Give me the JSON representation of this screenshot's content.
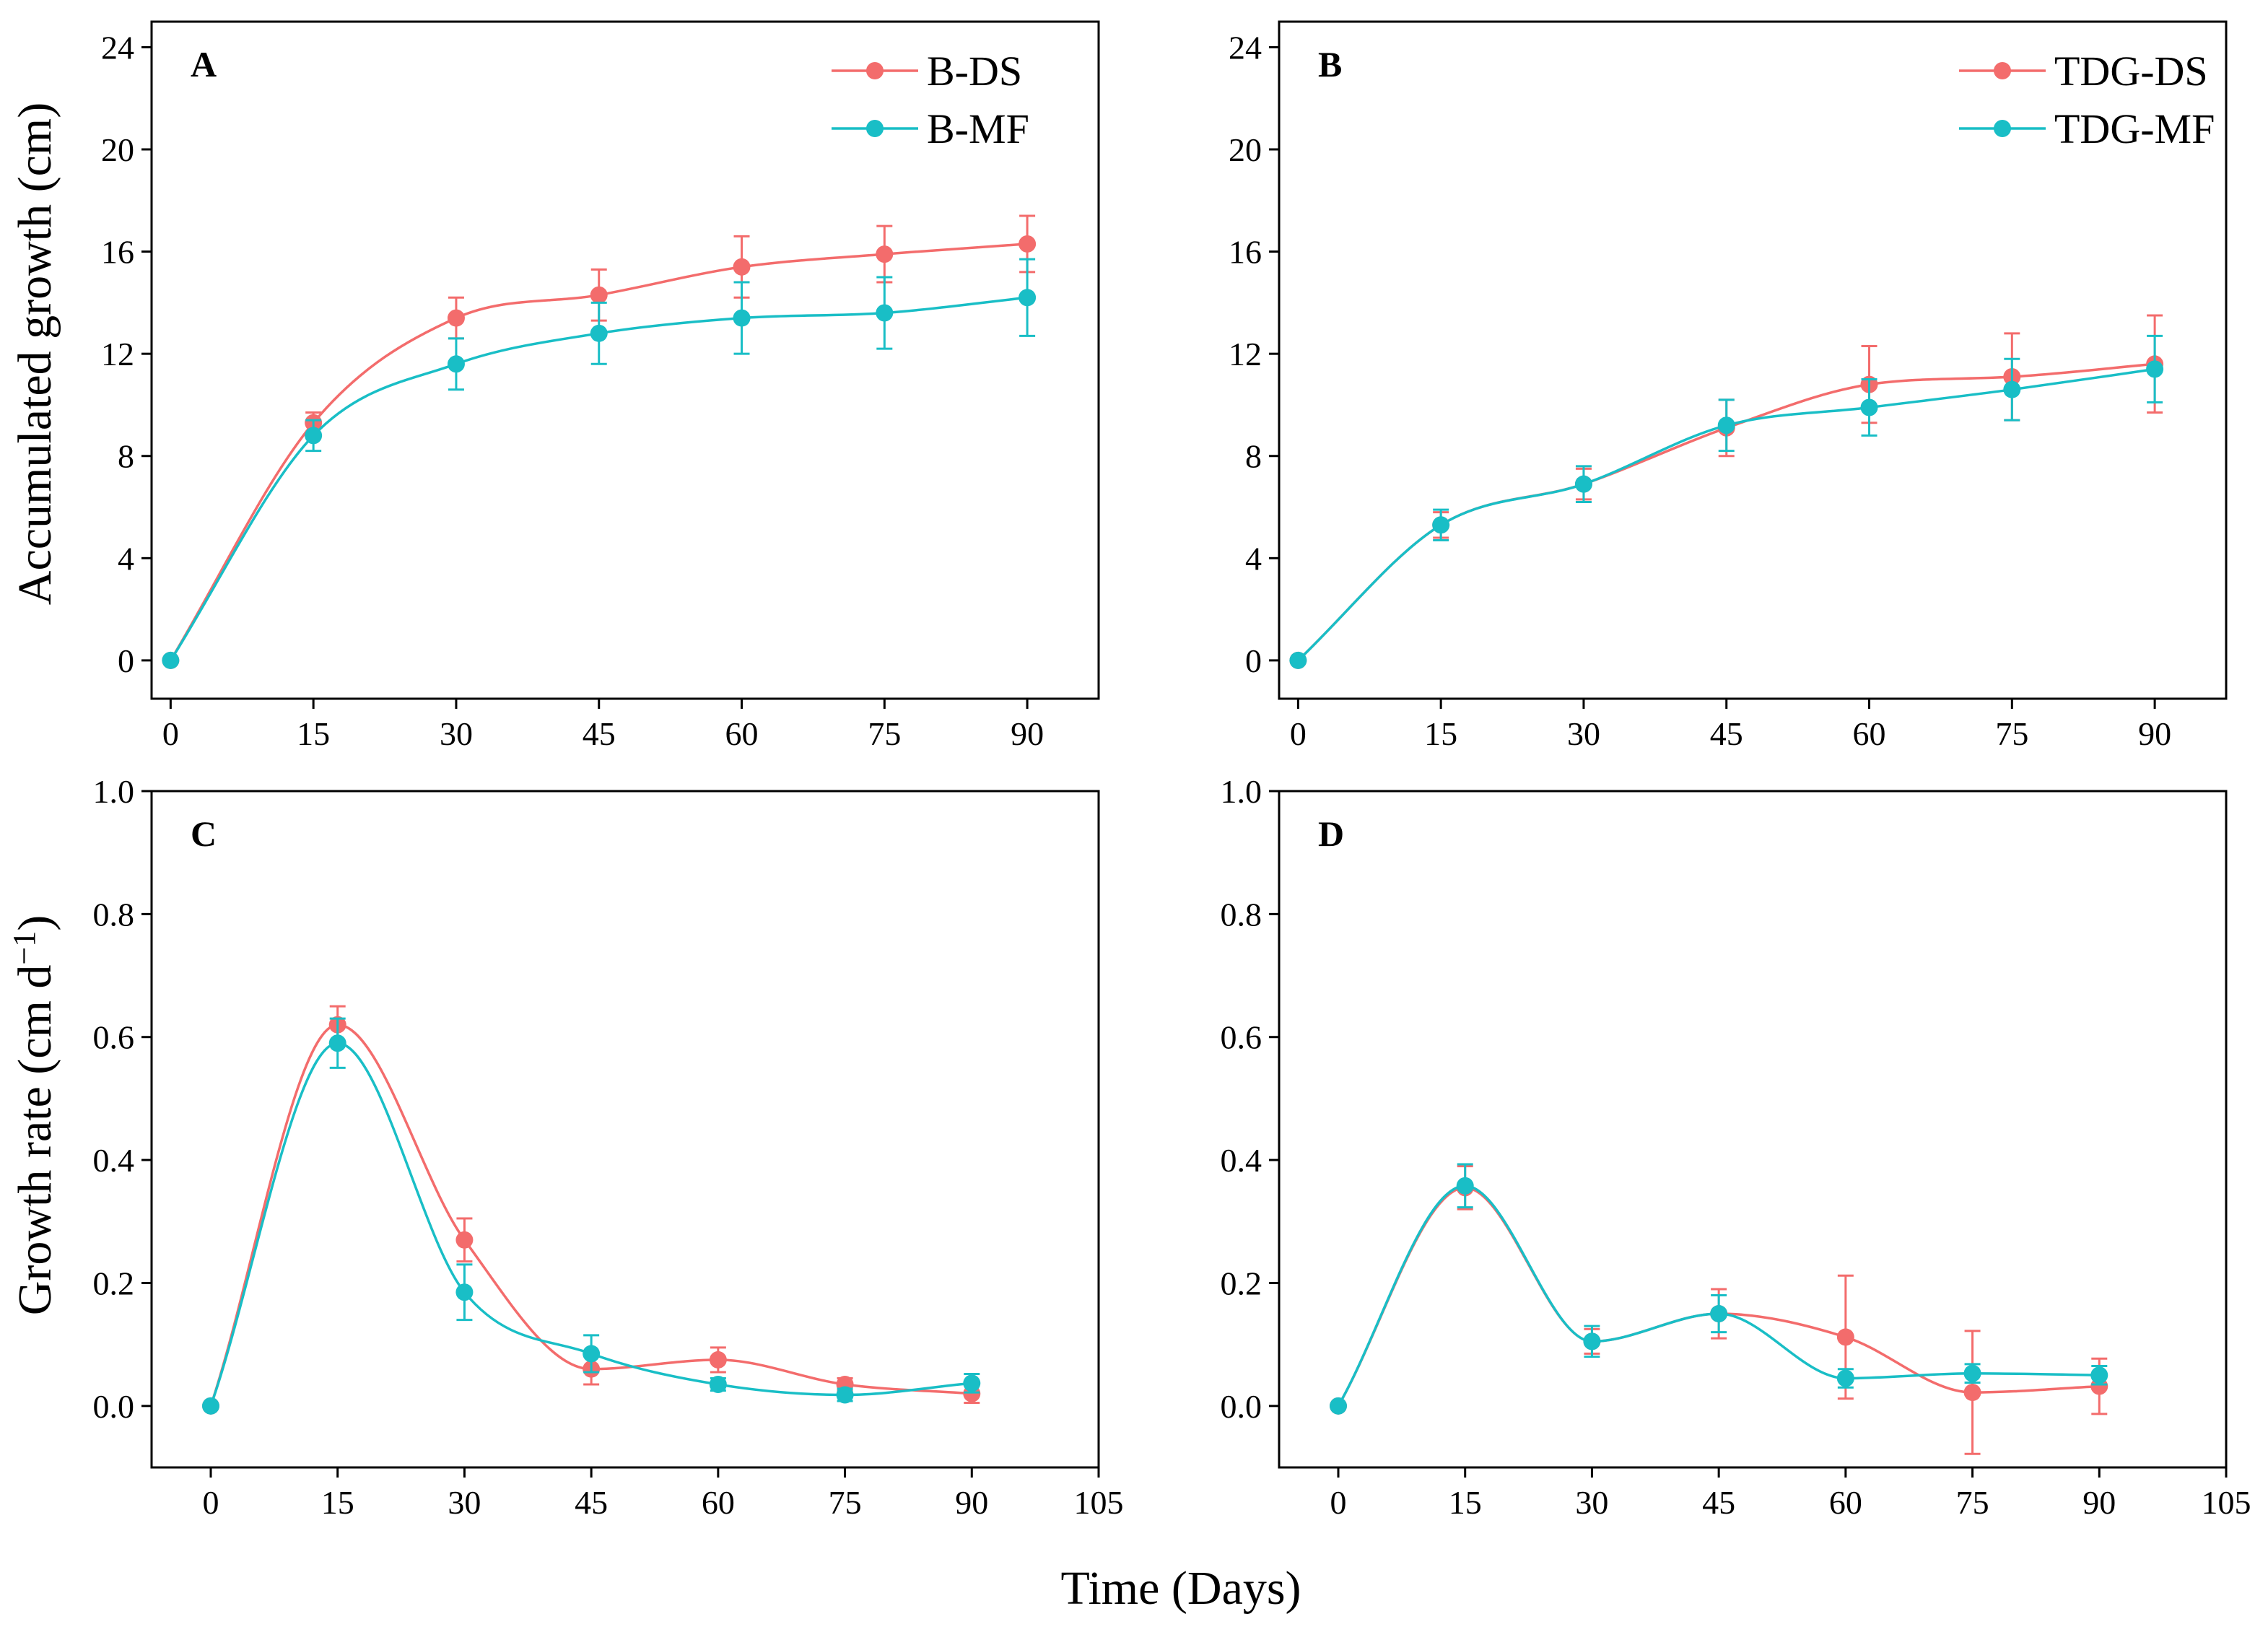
{
  "figure": {
    "x_axis_title": "Time (Days)",
    "y_title_top": "Accumulated growth (cm)",
    "y_title_bottom_main": "Growth rate (cm d",
    "y_title_bottom_sup": "−1",
    "y_title_bottom_close": ")"
  },
  "colors": {
    "ds": "#f36c6c",
    "mf": "#19bec6"
  },
  "chart_data": [
    {
      "type": "line",
      "panel": "A",
      "ylabel": "Accumulated growth (cm)",
      "xlim": [
        -2,
        97.5
      ],
      "ylim": [
        -1.5,
        25
      ],
      "xticks": [
        0,
        15,
        30,
        45,
        60,
        75,
        90
      ],
      "xtick_labels": [
        "0",
        "15",
        "30",
        "45",
        "60",
        "75",
        "90"
      ],
      "yticks": [
        0,
        4,
        8,
        12,
        16,
        20,
        24
      ],
      "ytick_labels": [
        "0",
        "4",
        "8",
        "12",
        "16",
        "20",
        "24"
      ],
      "legend": "top-right",
      "x": [
        0,
        15,
        30,
        45,
        60,
        75,
        90
      ],
      "series": [
        {
          "name": "B-DS",
          "color_key": "ds",
          "values": [
            0,
            9.3,
            13.4,
            14.3,
            15.4,
            15.9,
            16.3
          ],
          "errors": [
            0,
            0.4,
            0.8,
            1.0,
            1.2,
            1.1,
            1.1
          ]
        },
        {
          "name": "B-MF",
          "color_key": "mf",
          "values": [
            0,
            8.8,
            11.6,
            12.8,
            13.4,
            13.6,
            14.2
          ],
          "errors": [
            0,
            0.6,
            1.0,
            1.2,
            1.4,
            1.4,
            1.5
          ]
        }
      ]
    },
    {
      "type": "line",
      "panel": "B",
      "ylabel": "",
      "xlim": [
        -2,
        97.5
      ],
      "ylim": [
        -1.5,
        25
      ],
      "xticks": [
        0,
        15,
        30,
        45,
        60,
        75,
        90
      ],
      "xtick_labels": [
        "0",
        "15",
        "30",
        "45",
        "60",
        "75",
        "90"
      ],
      "yticks": [
        0,
        4,
        8,
        12,
        16,
        20,
        24
      ],
      "ytick_labels": [
        "0",
        "4",
        "8",
        "12",
        "16",
        "20",
        "24"
      ],
      "legend": "top-right",
      "x": [
        0,
        15,
        30,
        45,
        60,
        75,
        90
      ],
      "series": [
        {
          "name": "TDG-DS",
          "color_key": "ds",
          "values": [
            0,
            5.3,
            6.9,
            9.1,
            10.8,
            11.1,
            11.6
          ],
          "errors": [
            0,
            0.5,
            0.6,
            1.1,
            1.5,
            1.7,
            1.9
          ]
        },
        {
          "name": "TDG-MF",
          "color_key": "mf",
          "values": [
            0,
            5.3,
            6.9,
            9.2,
            9.9,
            10.6,
            11.4
          ],
          "errors": [
            0,
            0.6,
            0.7,
            1.0,
            1.1,
            1.2,
            1.3
          ]
        }
      ]
    },
    {
      "type": "line",
      "panel": "C",
      "ylabel": "Growth rate (cm d−1)",
      "xlim": [
        -7,
        105
      ],
      "ylim": [
        -0.1,
        1.0
      ],
      "xticks": [
        0,
        15,
        30,
        45,
        60,
        75,
        90,
        105
      ],
      "xtick_labels": [
        "0",
        "15",
        "30",
        "45",
        "60",
        "75",
        "90",
        "105"
      ],
      "yticks": [
        0,
        0.2,
        0.4,
        0.6,
        0.8,
        1.0
      ],
      "ytick_labels": [
        "0.0",
        "0.2",
        "0.4",
        "0.6",
        "0.8",
        "1.0"
      ],
      "legend": "none",
      "x": [
        0,
        15,
        30,
        45,
        60,
        75,
        90
      ],
      "series": [
        {
          "name": "B-DS",
          "color_key": "ds",
          "values": [
            0,
            0.62,
            0.27,
            0.06,
            0.075,
            0.035,
            0.02
          ],
          "errors": [
            0,
            0.03,
            0.035,
            0.025,
            0.02,
            0.01,
            0.015
          ]
        },
        {
          "name": "B-MF",
          "color_key": "mf",
          "values": [
            0,
            0.59,
            0.185,
            0.085,
            0.035,
            0.018,
            0.037
          ],
          "errors": [
            0,
            0.04,
            0.045,
            0.03,
            0.01,
            0.01,
            0.015
          ]
        }
      ]
    },
    {
      "type": "line",
      "panel": "D",
      "ylabel": "",
      "xlim": [
        -7,
        105
      ],
      "ylim": [
        -0.1,
        1.0
      ],
      "xticks": [
        0,
        15,
        30,
        45,
        60,
        75,
        90,
        105
      ],
      "xtick_labels": [
        "0",
        "15",
        "30",
        "45",
        "60",
        "75",
        "90",
        "105"
      ],
      "yticks": [
        0,
        0.2,
        0.4,
        0.6,
        0.8,
        1.0
      ],
      "ytick_labels": [
        "0.0",
        "0.2",
        "0.4",
        "0.6",
        "0.8",
        "1.0"
      ],
      "legend": "none",
      "x": [
        0,
        15,
        30,
        45,
        60,
        75,
        90
      ],
      "series": [
        {
          "name": "TDG-DS",
          "color_key": "ds",
          "values": [
            0,
            0.355,
            0.105,
            0.15,
            0.112,
            0.022,
            0.032
          ],
          "errors": [
            0,
            0.035,
            0.02,
            0.04,
            0.1,
            0.1,
            0.045
          ]
        },
        {
          "name": "TDG-MF",
          "color_key": "mf",
          "values": [
            0,
            0.358,
            0.105,
            0.15,
            0.045,
            0.053,
            0.05
          ],
          "errors": [
            0,
            0.035,
            0.025,
            0.03,
            0.015,
            0.015,
            0.015
          ]
        }
      ]
    }
  ]
}
